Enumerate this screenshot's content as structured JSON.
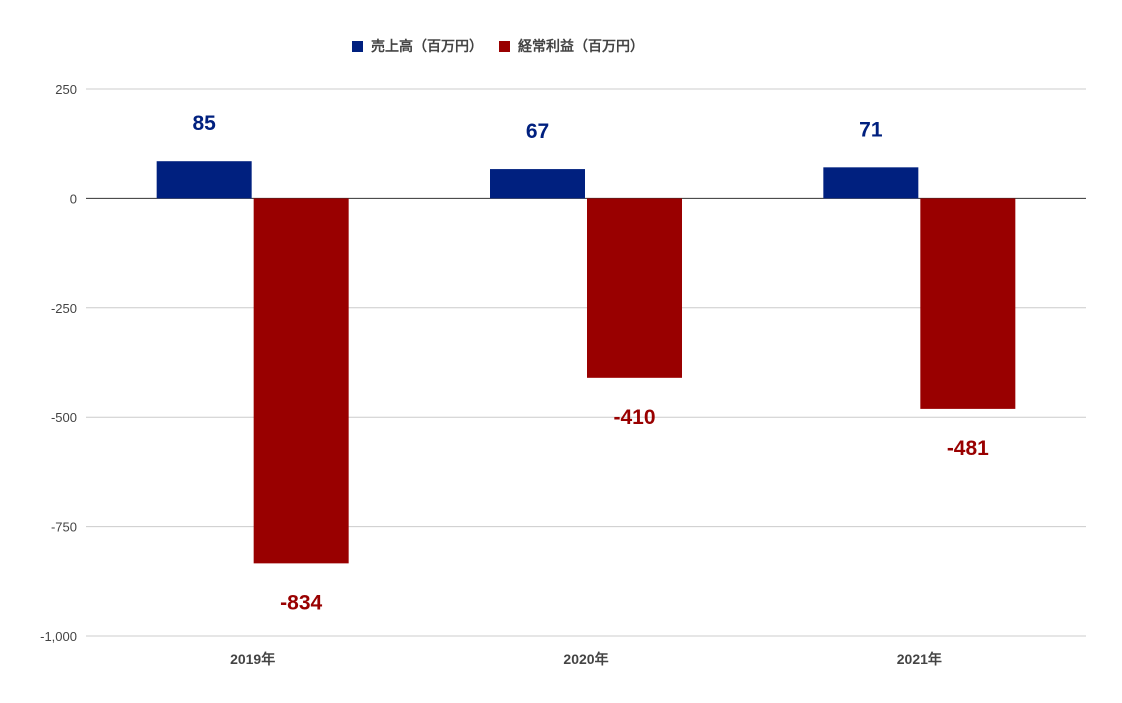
{
  "chart_data": {
    "type": "bar",
    "categories": [
      "2019年",
      "2020年",
      "2021年"
    ],
    "series": [
      {
        "name": "売上高（百万円）",
        "values": [
          85,
          67,
          71
        ],
        "color": "#00207f"
      },
      {
        "name": "経常利益（百万円）",
        "values": [
          -834,
          -410,
          -481
        ],
        "color": "#990000"
      }
    ],
    "y_ticks": [
      "250",
      "0",
      "-250",
      "-500",
      "-750",
      "-1,000"
    ],
    "ylim": [
      -1000,
      250
    ],
    "grid": true,
    "legend_position": "top",
    "data_labels": true
  }
}
